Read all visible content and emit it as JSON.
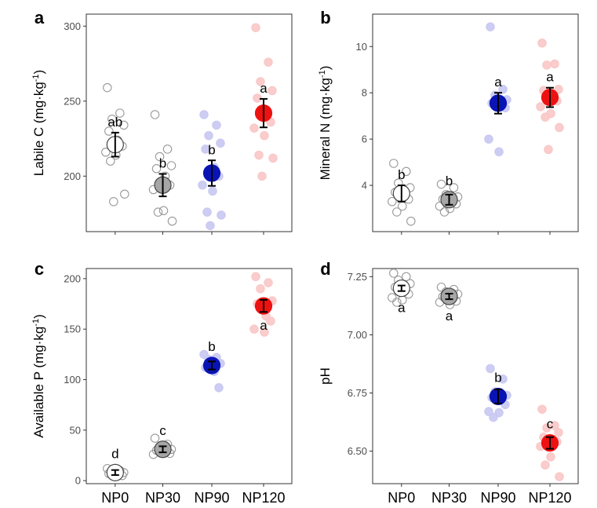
{
  "treatments": [
    "NP0",
    "NP30",
    "NP90",
    "NP120"
  ],
  "treatment_colors": {
    "NP0": {
      "fill": "#ffffff",
      "stroke": "#444444",
      "point_fill": "none",
      "point_stroke": "#999999"
    },
    "NP30": {
      "fill": "#a6a6a6",
      "stroke": "#444444",
      "point_fill": "none",
      "point_stroke": "#999999"
    },
    "NP90": {
      "fill": "#0a14b4",
      "stroke": "#0a14b4",
      "point_fill": "#c8c8f2",
      "point_stroke": "#c8c8f2"
    },
    "NP120": {
      "fill": "#ee1111",
      "stroke": "#ee1111",
      "point_fill": "#fac6c6",
      "point_stroke": "#fac6c6"
    }
  },
  "chart_data": [
    {
      "type": "scatter",
      "panel": "a",
      "ylabel": "Labile C (mg·kg",
      "ylabel_sup": "-1",
      "ylabel_end": ")",
      "ylim": [
        163,
        308
      ],
      "yticks": [
        200,
        250,
        300
      ],
      "ytick_labels": [
        "200",
        "250",
        "300"
      ],
      "show_x_labels": false,
      "categories": [
        "NP0",
        "NP30",
        "NP90",
        "NP120"
      ],
      "mean": [
        221,
        194,
        202,
        242
      ],
      "error": [
        8,
        7.5,
        8.5,
        9.5
      ],
      "letters": [
        "ab",
        "b",
        "b",
        "a"
      ],
      "letter_positions": [
        "above",
        "above",
        "above",
        "above"
      ],
      "points": [
        [
          259,
          242,
          238,
          234,
          230,
          224,
          220,
          216,
          214,
          210,
          188,
          183
        ],
        [
          241,
          218,
          213,
          207,
          205,
          200,
          194,
          191,
          177,
          176,
          170
        ],
        [
          241,
          234,
          227,
          222,
          218,
          206,
          200,
          194,
          190,
          176,
          174,
          167
        ],
        [
          299,
          276,
          263,
          257,
          252,
          239,
          236,
          232,
          227,
          214,
          212,
          200
        ]
      ]
    },
    {
      "type": "scatter",
      "panel": "b",
      "ylabel": "Mineral N (mg·kg",
      "ylabel_sup": "-1",
      "ylabel_end": ")",
      "ylim": [
        2.0,
        11.4
      ],
      "yticks": [
        4,
        6,
        8,
        10
      ],
      "ytick_labels": [
        "4",
        "6",
        "8",
        "10"
      ],
      "show_x_labels": false,
      "categories": [
        "NP0",
        "NP30",
        "NP90",
        "NP120"
      ],
      "mean": [
        3.65,
        3.38,
        7.55,
        7.8
      ],
      "error": [
        0.35,
        0.22,
        0.45,
        0.42
      ],
      "letters": [
        "b",
        "b",
        "a",
        "a"
      ],
      "letter_positions": [
        "above",
        "above",
        "above",
        "above"
      ],
      "points": [
        [
          4.95,
          4.6,
          4.1,
          3.9,
          3.7,
          3.5,
          3.4,
          3.3,
          3.1,
          2.85,
          2.45
        ],
        [
          4.05,
          3.9,
          3.6,
          3.5,
          3.4,
          3.3,
          3.2,
          3.1,
          3.0,
          2.85
        ],
        [
          10.85,
          8.15,
          7.9,
          7.7,
          7.55,
          7.45,
          7.35,
          6.0,
          5.45
        ],
        [
          10.15,
          9.25,
          9.2,
          8.15,
          8.1,
          7.9,
          7.65,
          7.4,
          7.1,
          6.95,
          6.5,
          5.55
        ]
      ]
    },
    {
      "type": "scatter",
      "panel": "c",
      "ylabel": "Available P (mg·kg",
      "ylabel_sup": "-1",
      "ylabel_end": ")",
      "ylim": [
        -3,
        210
      ],
      "yticks": [
        0,
        50,
        100,
        150,
        200
      ],
      "ytick_labels": [
        "0",
        "50",
        "100",
        "150",
        "200"
      ],
      "show_x_labels": true,
      "categories": [
        "NP0",
        "NP30",
        "NP90",
        "NP120"
      ],
      "mean": [
        8,
        31,
        114,
        173
      ],
      "error": [
        2.5,
        3,
        4,
        6
      ],
      "letters": [
        "d",
        "c",
        "b",
        "a"
      ],
      "letter_positions": [
        "above",
        "above",
        "above",
        "below"
      ],
      "points": [
        [
          12,
          10,
          9,
          8,
          7,
          6,
          5
        ],
        [
          42,
          36,
          33,
          31,
          30,
          28,
          27,
          26
        ],
        [
          125,
          122,
          120,
          116,
          112,
          108,
          92
        ],
        [
          202,
          196,
          190,
          178,
          175,
          163,
          158,
          150,
          147
        ]
      ]
    },
    {
      "type": "scatter",
      "panel": "d",
      "ylabel": "pH",
      "ylabel_sup": "",
      "ylabel_end": "",
      "ylim": [
        6.36,
        7.285
      ],
      "yticks": [
        6.5,
        6.75,
        7.0,
        7.25
      ],
      "ytick_labels": [
        "6.50",
        "6.75",
        "7.00",
        "7.25"
      ],
      "show_x_labels": true,
      "categories": [
        "NP0",
        "NP30",
        "NP90",
        "NP120"
      ],
      "mean": [
        7.2,
        7.165,
        6.735,
        6.535
      ],
      "error": [
        0.012,
        0.012,
        0.03,
        0.025
      ],
      "letters": [
        "a",
        "a",
        "b",
        "c"
      ],
      "letter_positions": [
        "below",
        "below",
        "above",
        "above"
      ],
      "points": [
        [
          7.265,
          7.25,
          7.235,
          7.22,
          7.205,
          7.19,
          7.175,
          7.16,
          7.15,
          7.14
        ],
        [
          7.205,
          7.195,
          7.185,
          7.175,
          7.165,
          7.155,
          7.145,
          7.14,
          7.13
        ],
        [
          6.855,
          6.81,
          6.755,
          6.74,
          6.73,
          6.72,
          6.7,
          6.67,
          6.665,
          6.645
        ],
        [
          6.68,
          6.61,
          6.6,
          6.58,
          6.56,
          6.55,
          6.54,
          6.52,
          6.475,
          6.44,
          6.39
        ]
      ]
    }
  ]
}
